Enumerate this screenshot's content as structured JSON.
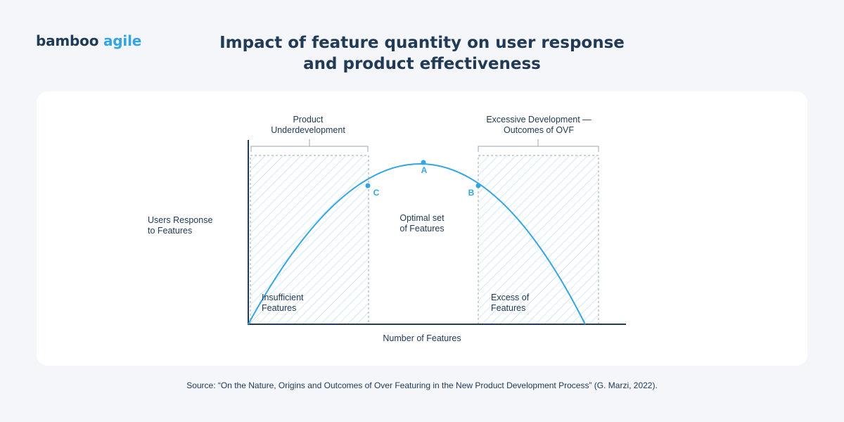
{
  "brand": {
    "name_part1": "bamboo",
    "name_part2": "agile",
    "primary_color": "#213a55",
    "accent_color": "#33a6e2"
  },
  "title": {
    "line1": "Impact of feature quantity on user response",
    "line2": "and product effectiveness"
  },
  "diagram": {
    "y_axis_label": [
      "Users Response",
      "to Features"
    ],
    "x_axis_label": "Number of Features",
    "zones": {
      "underdevelopment": {
        "bracket_label": [
          "Product",
          "Underdevelopment"
        ],
        "inner_label": [
          "Insufficient",
          "Features"
        ]
      },
      "optimal": {
        "inner_label": [
          "Optimal set",
          "of Features"
        ]
      },
      "excessive": {
        "bracket_label": [
          "Excessive Development —",
          "Outcomes of OVF"
        ],
        "inner_label": [
          "Excess of",
          "Features"
        ]
      }
    },
    "points": {
      "peak": "A",
      "right": "B",
      "left": "C"
    },
    "curve_color": "#33a6e2",
    "hatch_color": "#a9d7f0",
    "axis_color": "#213a55"
  },
  "source": "Source: “On the Nature, Origins and Outcomes of Over Featuring in the New Product Development Process” (G. Marzi, 2022)."
}
